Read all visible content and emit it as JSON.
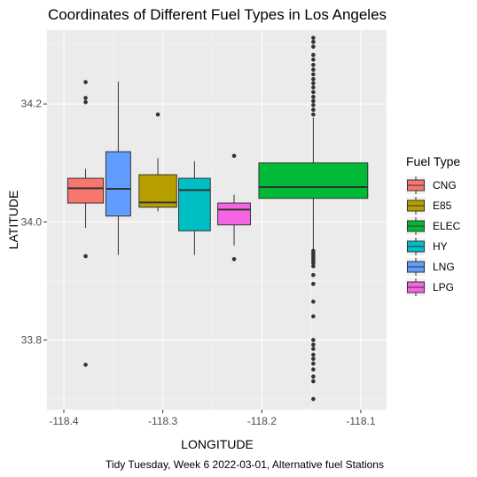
{
  "chart_data": {
    "type": "boxplot",
    "title": "Coordinates of Different Fuel Types in Los Angeles",
    "xlabel": "LONGITUDE",
    "ylabel": "LATITUDE",
    "caption": "Tidy Tuesday, Week 6 2022-03-01, Alternative fuel Stations",
    "xlim": [
      -118.417,
      -118.074
    ],
    "ylim": [
      33.682,
      34.325
    ],
    "x_ticks": [
      -118.4,
      -118.3,
      -118.2,
      -118.1
    ],
    "x_tick_labels": [
      "-118.4",
      "-118.3",
      "-118.2",
      "-118.1"
    ],
    "y_ticks": [
      33.8,
      34.0,
      34.2
    ],
    "y_tick_labels": [
      "33.8",
      "34.0",
      "34.2"
    ],
    "grid": true,
    "legend": {
      "title": "Fuel Type",
      "position": "right",
      "entries": [
        {
          "label": "CNG",
          "color": "#F8766D"
        },
        {
          "label": "E85",
          "color": "#B79F00"
        },
        {
          "label": "ELEC",
          "color": "#00BA38"
        },
        {
          "label": "HY",
          "color": "#00BFC4"
        },
        {
          "label": "LNG",
          "color": "#619CFF"
        },
        {
          "label": "LPG",
          "color": "#F564E3"
        }
      ]
    },
    "boxes": [
      {
        "fuel_type": "CNG",
        "color": "#F8766D",
        "x_center": -118.378,
        "width": 0.036,
        "min": 33.99,
        "q1": 34.032,
        "median": 34.057,
        "q3": 34.074,
        "max": 34.09,
        "outliers": [
          34.237,
          34.21,
          34.203,
          33.942,
          33.758
        ]
      },
      {
        "fuel_type": "LNG",
        "color": "#619CFF",
        "x_center": -118.345,
        "width": 0.025,
        "min": 33.944,
        "q1": 34.01,
        "median": 34.056,
        "q3": 34.119,
        "max": 34.238,
        "outliers": []
      },
      {
        "fuel_type": "E85",
        "color": "#B79F00",
        "x_center": -118.305,
        "width": 0.038,
        "min": 34.018,
        "q1": 34.025,
        "median": 34.033,
        "q3": 34.08,
        "max": 34.108,
        "outliers": [
          34.182
        ]
      },
      {
        "fuel_type": "HY",
        "color": "#00BFC4",
        "x_center": -118.268,
        "width": 0.032,
        "min": 33.944,
        "q1": 33.985,
        "median": 34.054,
        "q3": 34.074,
        "max": 34.103,
        "outliers": []
      },
      {
        "fuel_type": "LPG",
        "color": "#F564E3",
        "x_center": -118.228,
        "width": 0.033,
        "min": 33.96,
        "q1": 33.995,
        "median": 34.021,
        "q3": 34.032,
        "max": 34.046,
        "outliers": [
          34.112,
          33.937
        ]
      },
      {
        "fuel_type": "ELEC",
        "color": "#00BA38",
        "x_center": -118.148,
        "width": 0.11,
        "min": 33.952,
        "q1": 34.04,
        "median": 34.059,
        "q3": 34.1,
        "max": 34.177,
        "outliers": [
          34.312,
          34.305,
          34.297,
          34.283,
          34.275,
          34.266,
          34.258,
          34.25,
          34.242,
          34.235,
          34.228,
          34.22,
          34.212,
          34.205,
          34.198,
          34.19,
          34.182,
          33.951,
          33.947,
          33.944,
          33.94,
          33.937,
          33.934,
          33.93,
          33.925,
          33.91,
          33.895,
          33.865,
          33.84,
          33.8,
          33.792,
          33.785,
          33.775,
          33.768,
          33.76,
          33.75,
          33.738,
          33.73,
          33.7
        ]
      }
    ]
  }
}
